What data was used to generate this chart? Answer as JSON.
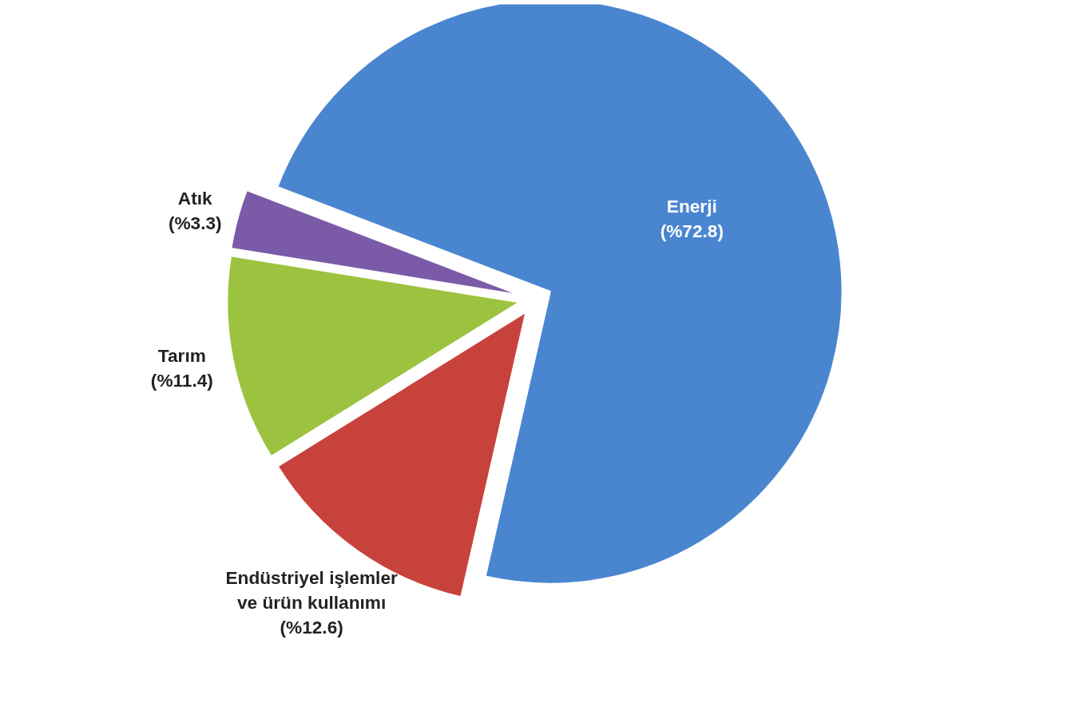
{
  "chart_data": {
    "type": "pie",
    "categories": [
      "Enerji",
      "Endüstriyel işlemler ve ürün kullanımı",
      "Tarım",
      "Atık"
    ],
    "values": [
      72.8,
      12.6,
      11.4,
      3.3
    ],
    "colors": [
      "#4a86d0",
      "#c8423c",
      "#9cc33f",
      "#7b5ba8"
    ],
    "value_labels": [
      "(%72.8)",
      "(%12.6)",
      "(%11.4)",
      "(%3.3)"
    ]
  }
}
